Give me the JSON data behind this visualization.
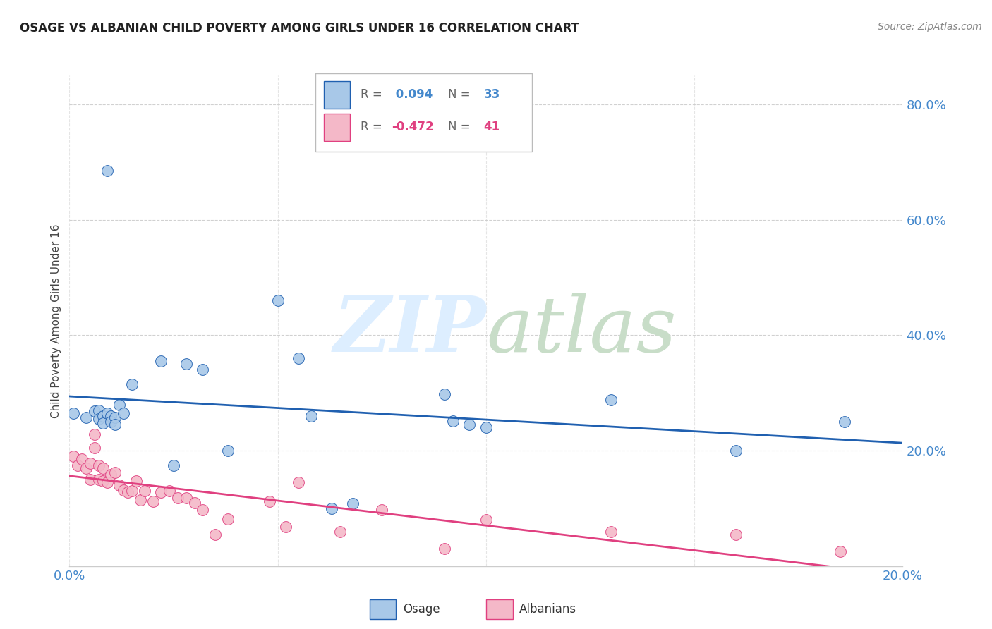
{
  "title": "OSAGE VS ALBANIAN CHILD POVERTY AMONG GIRLS UNDER 16 CORRELATION CHART",
  "source": "Source: ZipAtlas.com",
  "ylabel": "Child Poverty Among Girls Under 16",
  "xlim": [
    0.0,
    0.2
  ],
  "ylim": [
    0.0,
    0.85
  ],
  "yticks": [
    0.2,
    0.4,
    0.6,
    0.8
  ],
  "ytick_labels": [
    "20.0%",
    "40.0%",
    "60.0%",
    "80.0%"
  ],
  "xticks": [
    0.0,
    0.05,
    0.1,
    0.15,
    0.2
  ],
  "xtick_labels": [
    "0.0%",
    "",
    "",
    "",
    "20.0%"
  ],
  "osage_R": 0.094,
  "osage_N": 33,
  "albanian_R": -0.472,
  "albanian_N": 41,
  "osage_color": "#a8c8e8",
  "albanian_color": "#f4b8c8",
  "trend_osage_color": "#2060b0",
  "trend_albanian_color": "#e04080",
  "watermark_color": "#ddeeff",
  "axis_color": "#4488cc",
  "osage_x": [
    0.001,
    0.004,
    0.006,
    0.007,
    0.007,
    0.008,
    0.008,
    0.009,
    0.009,
    0.01,
    0.01,
    0.011,
    0.011,
    0.012,
    0.013,
    0.015,
    0.022,
    0.025,
    0.028,
    0.032,
    0.038,
    0.05,
    0.055,
    0.058,
    0.063,
    0.068,
    0.09,
    0.092,
    0.096,
    0.1,
    0.13,
    0.16,
    0.186
  ],
  "osage_y": [
    0.265,
    0.258,
    0.268,
    0.27,
    0.255,
    0.26,
    0.248,
    0.685,
    0.265,
    0.26,
    0.25,
    0.258,
    0.245,
    0.28,
    0.265,
    0.315,
    0.355,
    0.175,
    0.35,
    0.34,
    0.2,
    0.46,
    0.36,
    0.26,
    0.1,
    0.108,
    0.298,
    0.252,
    0.245,
    0.24,
    0.288,
    0.2,
    0.25
  ],
  "albanian_x": [
    0.001,
    0.002,
    0.003,
    0.004,
    0.005,
    0.005,
    0.006,
    0.006,
    0.007,
    0.007,
    0.008,
    0.008,
    0.009,
    0.01,
    0.011,
    0.012,
    0.013,
    0.014,
    0.015,
    0.016,
    0.017,
    0.018,
    0.02,
    0.022,
    0.024,
    0.026,
    0.028,
    0.03,
    0.032,
    0.035,
    0.038,
    0.048,
    0.052,
    0.055,
    0.065,
    0.075,
    0.09,
    0.1,
    0.13,
    0.16,
    0.185
  ],
  "albanian_y": [
    0.19,
    0.175,
    0.185,
    0.17,
    0.178,
    0.15,
    0.228,
    0.205,
    0.175,
    0.15,
    0.17,
    0.148,
    0.145,
    0.158,
    0.162,
    0.14,
    0.132,
    0.128,
    0.13,
    0.148,
    0.115,
    0.13,
    0.112,
    0.128,
    0.13,
    0.118,
    0.118,
    0.11,
    0.098,
    0.055,
    0.082,
    0.112,
    0.068,
    0.145,
    0.06,
    0.098,
    0.03,
    0.08,
    0.06,
    0.055,
    0.025
  ]
}
